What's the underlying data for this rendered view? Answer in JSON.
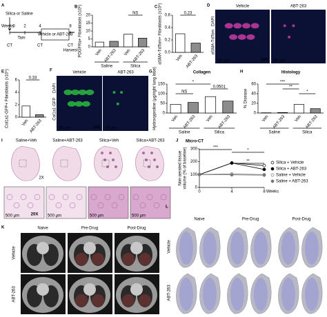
{
  "chart_data": [
    {
      "type": "bar",
      "label": "B",
      "ylabel": "PDGFRα+ Fibroblasts (x10⁶)",
      "categories": [
        "Veh",
        "ABT-263",
        "Veh",
        "ABT-263"
      ],
      "values": [
        3,
        3.5,
        8,
        5.5
      ],
      "colors": [
        "#ffffff",
        "#8c8c8c",
        "#ffffff",
        "#8c8c8c"
      ],
      "groups": [
        "Saline",
        "Silica"
      ],
      "annotations": [
        "NS"
      ],
      "ylim": [
        0,
        20
      ],
      "yticks": [
        0,
        5,
        10,
        15,
        20
      ]
    },
    {
      "type": "bar",
      "label": "C",
      "ylabel": "αSMA-TdTom+ Fibroblasts (x10⁶)",
      "categories": [
        "Veh",
        "ABT-263"
      ],
      "values": [
        0.3,
        0.15
      ],
      "colors": [
        "#ffffff",
        "#8c8c8c"
      ],
      "annotations": [
        "0.23"
      ],
      "ylim": [
        0,
        0.6
      ],
      "yticks": [
        {
          "value": 0,
          "label": "0.0"
        },
        0.2,
        0.4,
        0.6
      ]
    },
    {
      "type": "bar",
      "label": "E",
      "ylabel": "Col1a1-GFP+ Fibroblasts (x10⁶)",
      "categories": [
        "Veh",
        "ABT-263"
      ],
      "values": [
        1.8,
        0.4
      ],
      "colors": [
        "#ffffff",
        "#8c8c8c"
      ],
      "annotations": [
        "0.33"
      ],
      "ylim": [
        0,
        6
      ],
      "yticks": [
        0,
        2,
        4,
        6
      ]
    },
    {
      "type": "bar",
      "label": "G",
      "title": "Collagen",
      "ylabel": "Hydroxyproline (μg/right lung lobe)",
      "categories": [
        "Veh",
        "ABT-263",
        "Veh",
        "ABT-263"
      ],
      "values": [
        45,
        55,
        85,
        62
      ],
      "colors": [
        "#ffffff",
        "#8c8c8c",
        "#ffffff",
        "#8c8c8c"
      ],
      "groups": [
        "Saline",
        "Silica"
      ],
      "annotations": [
        "NS",
        "*",
        "0.0501"
      ],
      "ylim": [
        0,
        150
      ],
      "yticks": [
        0,
        50,
        100,
        150
      ]
    },
    {
      "type": "bar",
      "label": "H",
      "title": "Histology",
      "ylabel": "% Disease",
      "categories": [
        "Veh",
        "ABT-263",
        "Veh",
        "ABT-263"
      ],
      "values": [
        0.5,
        1,
        18,
        9
      ],
      "colors": [
        "#ffffff",
        "#8c8c8c",
        "#ffffff",
        "#8c8c8c"
      ],
      "groups": [
        "Saline",
        "Silica"
      ],
      "annotations": [
        "***",
        "**",
        "*"
      ],
      "ylim": [
        0,
        60
      ],
      "yticks": [
        0,
        20,
        40,
        60
      ]
    },
    {
      "type": "line",
      "label": "J",
      "title": "Micro-CT",
      "ylabel": [
        "Non-aerated tissue",
        "volume (% of baseline)"
      ],
      "xlabel": "Weeks",
      "x": [
        0,
        4,
        8
      ],
      "xlim": [
        0,
        8
      ],
      "xticks": [
        0,
        4,
        8
      ],
      "ylim": [
        0,
        300
      ],
      "yticks": [
        0,
        100,
        200,
        300
      ],
      "annotations": [
        "***",
        "*",
        "**"
      ],
      "series": [
        {
          "name": "Silica + Vehicle",
          "color": "#000000",
          "marker": "open",
          "values": [
            100,
            190,
            170
          ]
        },
        {
          "name": "Silica + ABT-263",
          "color": "#000000",
          "marker": "filled",
          "values": [
            100,
            190,
            140
          ]
        },
        {
          "name": "Saline + Vehicle",
          "color": "#777777",
          "marker": "open",
          "values": [
            100,
            105,
            100
          ]
        },
        {
          "name": "Saline + ABT-263",
          "color": "#777777",
          "marker": "filled",
          "values": [
            100,
            98,
            95
          ]
        }
      ]
    }
  ],
  "panels": {
    "A": {
      "label": "A",
      "treatment": "Silica or Saline",
      "weeks_label": "Weeks",
      "weeks": [
        0,
        2,
        4,
        8
      ],
      "tam": "Tam",
      "drug": "Vehicle or ABT-263",
      "ct": [
        "CT",
        "CT",
        "CT"
      ],
      "harvest": "Harvest"
    },
    "D": {
      "label": "D",
      "columns": [
        "Vehicle",
        "ABT-263"
      ],
      "stain": "αSMA-TdTom",
      "dapi": "DAPI",
      "magnification": "20X",
      "scale": "50 μm"
    },
    "F": {
      "label": "F",
      "columns": [
        "Vehicle",
        "ABT-263"
      ],
      "stain": "Col1a1-GFP",
      "dapi": "DAPI",
      "magnification": "20X",
      "scale": "50 μm"
    },
    "I": {
      "label": "I",
      "columns": [
        "Saline+Veh",
        "Saline+ABT-263",
        "Silica+Veh",
        "Silica+ABT-263"
      ],
      "low_mag": "2X",
      "high_mag": "20X",
      "scale": "500 μm"
    },
    "K": {
      "label": "K",
      "columns": [
        "Naive",
        "Pre-Drug",
        "Post-Drug"
      ],
      "rows": [
        "Vehicle",
        "ABT-263"
      ]
    },
    "L": {
      "label": "L",
      "columns": [
        "Naive",
        "Pre-Drug",
        "Post-Drug"
      ],
      "rows": [
        "Vehicle",
        "ABT-263"
      ]
    }
  }
}
